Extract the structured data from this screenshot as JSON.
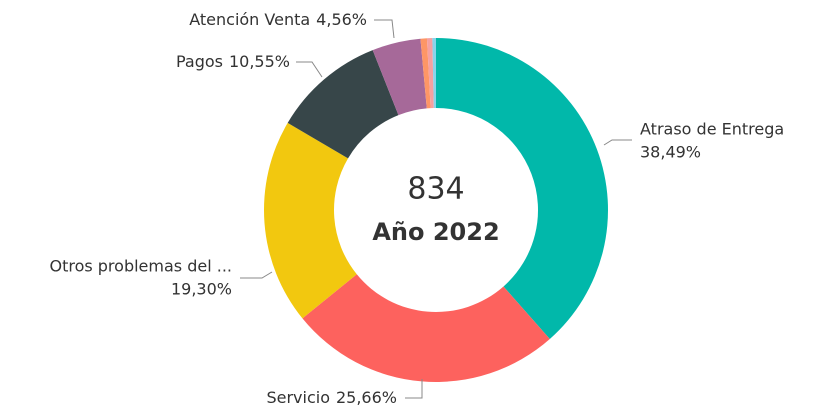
{
  "chart_data": {
    "type": "donut",
    "categories": [
      "Atraso de Entrega",
      "Servicio",
      "Otros problemas del ...",
      "Pagos",
      "Atención Venta",
      null,
      null,
      null
    ],
    "values": [
      38.49,
      25.66,
      19.3,
      10.55,
      4.56,
      0.6,
      0.5,
      0.34
    ],
    "value_labels": [
      "38,49%",
      "25,66%",
      "19,30%",
      "10,55%",
      "4,56%",
      null,
      null,
      null
    ],
    "colors": [
      "#01B8AA",
      "#FD625E",
      "#F2C80F",
      "#374649",
      "#A66999",
      "#FE9666",
      "#F5A1A1",
      "#8AD4EB"
    ],
    "total": 834,
    "center_label": "Año 2022"
  }
}
